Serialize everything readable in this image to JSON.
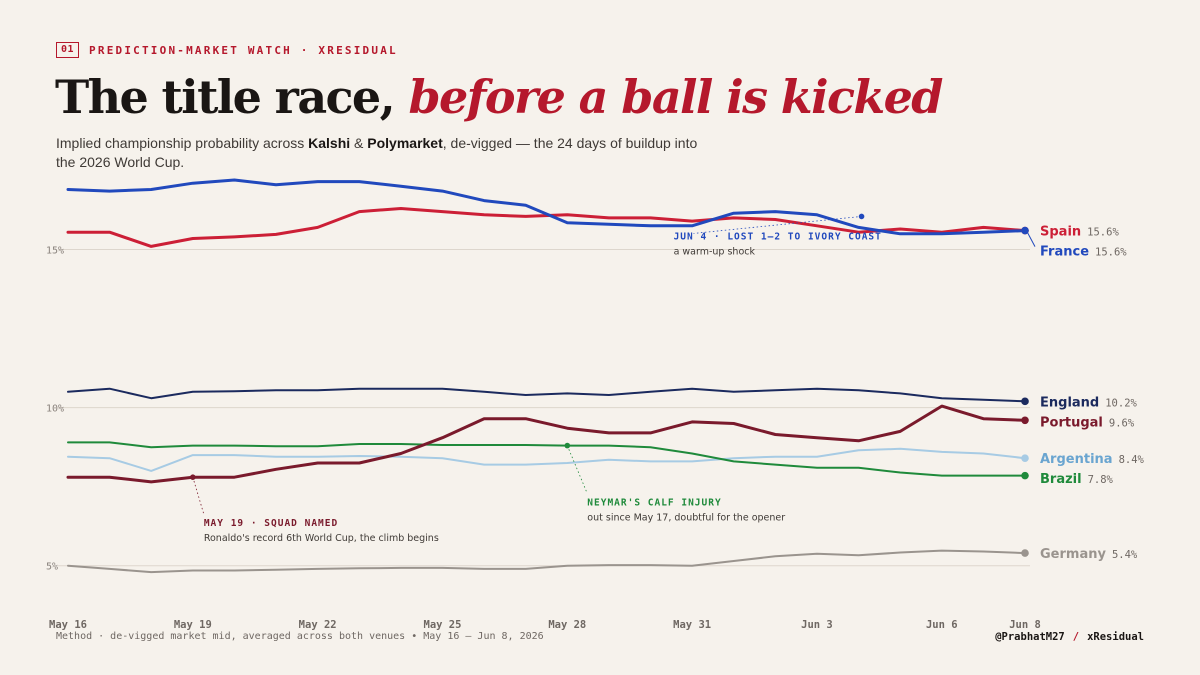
{
  "header": {
    "number": "01",
    "kicker": "PREDICTION-MARKET WATCH · XRESIDUAL",
    "title_main": "The title race, ",
    "title_accent": "before a ball is kicked",
    "subtitle_pre": "Implied championship probability across ",
    "subtitle_b1": "Kalshi",
    "subtitle_amp": " & ",
    "subtitle_b2": "Polymarket",
    "subtitle_post": ", de-vigged — the 24 days of buildup into the 2026 World Cup."
  },
  "footer": {
    "method": "Method · de-vigged market mid, averaged across both venues • May 16 – Jun 8, 2026",
    "handle": "@PrabhatM27",
    "slash": "/",
    "brand": "xResidual"
  },
  "colors": {
    "spain": "#cc1f36",
    "france": "#2149bd",
    "england": "#1b2a5e",
    "portugal": "#7a1a2c",
    "argentina": "#a7cbe4",
    "brazil": "#1f8a3b",
    "germany": "#9a948e",
    "gridline": "#ddd6cd"
  },
  "chart_data": {
    "type": "line",
    "x": [
      "May 16",
      "May 17",
      "May 18",
      "May 19",
      "May 20",
      "May 21",
      "May 22",
      "May 23",
      "May 24",
      "May 25",
      "May 26",
      "May 27",
      "May 28",
      "May 29",
      "May 30",
      "May 31",
      "Jun 1",
      "Jun 2",
      "Jun 3",
      "Jun 4",
      "Jun 5",
      "Jun 6",
      "Jun 7",
      "Jun 8"
    ],
    "x_ticks": [
      {
        "label": "May 16",
        "index": 0
      },
      {
        "label": "May 19",
        "index": 3
      },
      {
        "label": "May 22",
        "index": 6
      },
      {
        "label": "May 25",
        "index": 9
      },
      {
        "label": "May 28",
        "index": 12
      },
      {
        "label": "May 31",
        "index": 15
      },
      {
        "label": "Jun 3",
        "index": 18
      },
      {
        "label": "Jun 6",
        "index": 21
      },
      {
        "label": "Jun 8",
        "index": 23
      }
    ],
    "y_ticks": [
      {
        "value": 5,
        "label": "5%"
      },
      {
        "value": 10,
        "label": "10%"
      },
      {
        "value": 15,
        "label": "15%"
      }
    ],
    "ylim": [
      3.6,
      17.2
    ],
    "grid": true,
    "legend": "end-of-line labels",
    "series": [
      {
        "key": "germany",
        "name": "Germany",
        "end_label": "5.4%",
        "width": 2,
        "values": [
          5.0,
          4.9,
          4.8,
          4.85,
          4.85,
          4.87,
          4.9,
          4.92,
          4.93,
          4.93,
          4.9,
          4.9,
          5.0,
          5.02,
          5.02,
          5.0,
          5.15,
          5.3,
          5.38,
          5.33,
          5.42,
          5.48,
          5.45,
          5.4
        ]
      },
      {
        "key": "argentina",
        "name": "Argentina",
        "end_label": "8.4%",
        "width": 2,
        "values": [
          8.45,
          8.4,
          8.0,
          8.5,
          8.5,
          8.45,
          8.45,
          8.47,
          8.45,
          8.4,
          8.2,
          8.2,
          8.25,
          8.35,
          8.3,
          8.3,
          8.4,
          8.45,
          8.45,
          8.65,
          8.7,
          8.6,
          8.55,
          8.4
        ]
      },
      {
        "key": "brazil",
        "name": "Brazil",
        "end_label": "7.8%",
        "width": 2,
        "values": [
          8.9,
          8.9,
          8.75,
          8.8,
          8.8,
          8.78,
          8.78,
          8.85,
          8.85,
          8.82,
          8.82,
          8.82,
          8.8,
          8.8,
          8.75,
          8.55,
          8.3,
          8.2,
          8.1,
          8.1,
          7.95,
          7.85,
          7.85,
          7.85
        ]
      },
      {
        "key": "england",
        "name": "England",
        "end_label": "10.2%",
        "width": 2,
        "values": [
          10.5,
          10.6,
          10.3,
          10.5,
          10.52,
          10.55,
          10.55,
          10.6,
          10.6,
          10.6,
          10.5,
          10.4,
          10.45,
          10.4,
          10.5,
          10.6,
          10.5,
          10.55,
          10.6,
          10.55,
          10.45,
          10.3,
          10.25,
          10.2
        ]
      },
      {
        "key": "portugal",
        "name": "Portugal",
        "end_label": "9.6%",
        "width": 3,
        "values": [
          7.8,
          7.8,
          7.65,
          7.8,
          7.8,
          8.05,
          8.25,
          8.25,
          8.55,
          9.05,
          9.65,
          9.65,
          9.35,
          9.2,
          9.2,
          9.55,
          9.5,
          9.15,
          9.05,
          8.95,
          9.25,
          10.05,
          9.65,
          9.6
        ]
      },
      {
        "key": "spain",
        "name": "Spain",
        "end_label": "15.6%",
        "width": 3,
        "values": [
          15.55,
          15.55,
          15.1,
          15.35,
          15.4,
          15.48,
          15.7,
          16.2,
          16.3,
          16.2,
          16.1,
          16.05,
          16.1,
          16.0,
          16.0,
          15.9,
          16.0,
          15.95,
          15.75,
          15.55,
          15.65,
          15.55,
          15.7,
          15.6
        ]
      },
      {
        "key": "france",
        "name": "France",
        "end_label": "15.6%",
        "width": 3,
        "values": [
          16.9,
          16.85,
          16.9,
          17.1,
          17.2,
          17.05,
          17.15,
          17.15,
          17.0,
          16.85,
          16.55,
          16.4,
          15.85,
          15.8,
          15.75,
          15.75,
          16.15,
          16.2,
          16.1,
          15.7,
          15.5,
          15.5,
          15.55,
          15.6
        ]
      }
    ],
    "annotations": [
      {
        "key": "portugal",
        "index": 3,
        "title": "MAY 19 · SQUAD NAMED",
        "note": "Ronaldo's record 6th World Cup, the climb begins"
      },
      {
        "key": "brazil",
        "index": 12,
        "title": "NEYMAR'S CALF INJURY",
        "note": "out since May 17, doubtful for the opener"
      },
      {
        "key": "france",
        "index": 19,
        "title": "JUN 4 · LOST 1–2 TO IVORY COAST",
        "note": "a warm-up shock"
      }
    ]
  }
}
